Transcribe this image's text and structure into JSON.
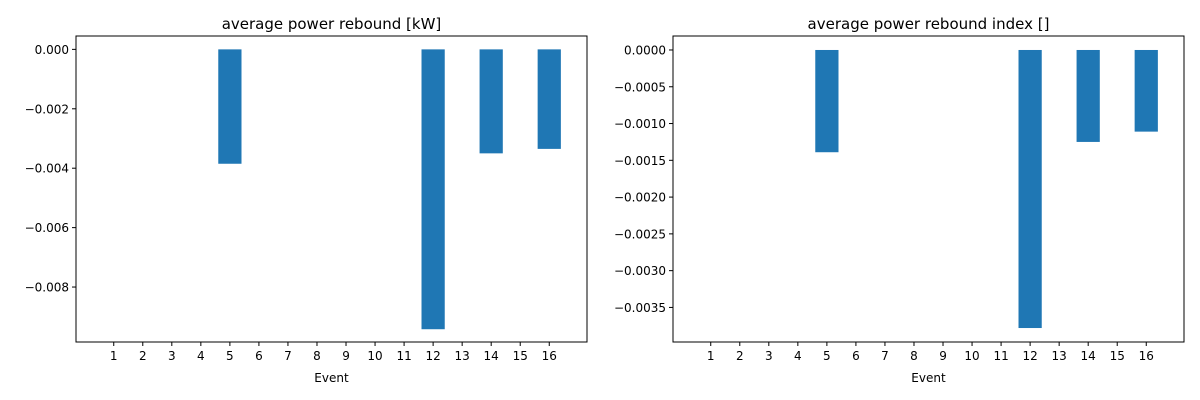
{
  "chart_data": [
    {
      "type": "bar",
      "title": "average power rebound [kW]",
      "xlabel": "Event",
      "ylabel": "",
      "categories": [
        "1",
        "2",
        "3",
        "4",
        "5",
        "6",
        "7",
        "8",
        "9",
        "10",
        "11",
        "12",
        "13",
        "14",
        "15",
        "16"
      ],
      "values": [
        0,
        0,
        0,
        0,
        -0.00385,
        0,
        0,
        0,
        0,
        0,
        0,
        -0.00942,
        0,
        -0.0035,
        0,
        -0.00335
      ],
      "ylim": [
        -0.00985,
        0.00045
      ],
      "yticks": [
        0.0,
        -0.002,
        -0.004,
        -0.006,
        -0.008
      ],
      "ytick_labels": [
        "0.000",
        "−0.002",
        "−0.004",
        "−0.006",
        "−0.008"
      ],
      "bar_color": "#1f77b4",
      "grid": false,
      "legend": "none"
    },
    {
      "type": "bar",
      "title": "average power rebound index []",
      "xlabel": "Event",
      "ylabel": "",
      "categories": [
        "1",
        "2",
        "3",
        "4",
        "5",
        "6",
        "7",
        "8",
        "9",
        "10",
        "11",
        "12",
        "13",
        "14",
        "15",
        "16"
      ],
      "values": [
        0,
        0,
        0,
        0,
        -0.00139,
        0,
        0,
        0,
        0,
        0,
        0,
        -0.00378,
        0,
        -0.00125,
        0,
        -0.00111
      ],
      "ylim": [
        -0.00397,
        0.00019
      ],
      "yticks": [
        0.0,
        -0.0005,
        -0.001,
        -0.0015,
        -0.002,
        -0.0025,
        -0.003,
        -0.0035
      ],
      "ytick_labels": [
        "0.0000",
        "−0.0005",
        "−0.0010",
        "−0.0015",
        "−0.0020",
        "−0.0025",
        "−0.0030",
        "−0.0035"
      ],
      "bar_color": "#1f77b4",
      "grid": false,
      "legend": "none"
    }
  ]
}
